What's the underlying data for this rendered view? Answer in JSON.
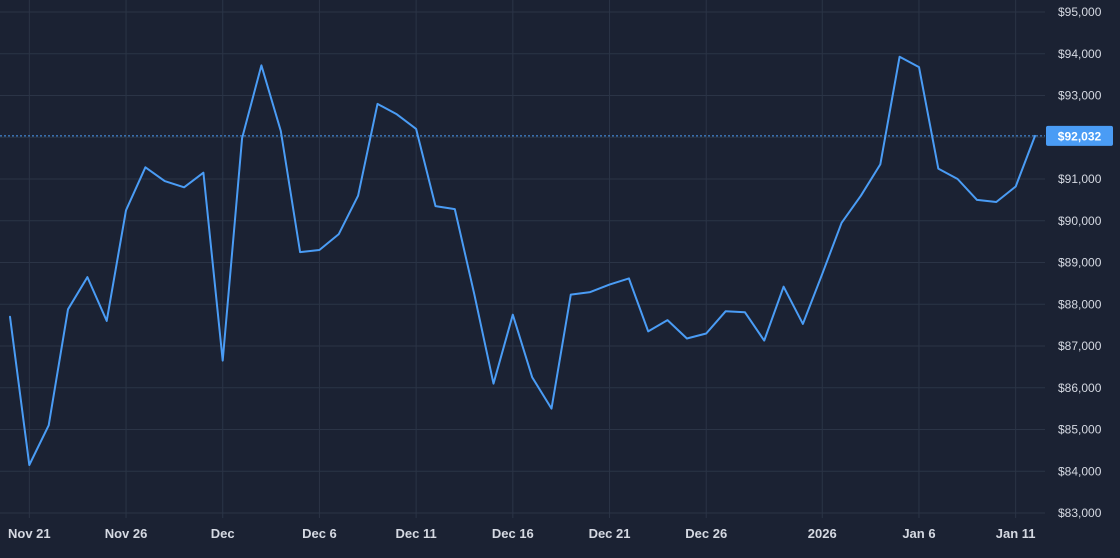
{
  "chart_data": {
    "type": "line",
    "series": [
      {
        "x": [
          "2025-11-20",
          "2025-11-21",
          "2025-11-22",
          "2025-11-23",
          "2025-11-24",
          "2025-11-25",
          "2025-11-26",
          "2025-11-27",
          "2025-11-28",
          "2025-11-29",
          "2025-11-30",
          "2025-12-01",
          "2025-12-02",
          "2025-12-03",
          "2025-12-04",
          "2025-12-05",
          "2025-12-06",
          "2025-12-07",
          "2025-12-08",
          "2025-12-09",
          "2025-12-10",
          "2025-12-11",
          "2025-12-12",
          "2025-12-13",
          "2025-12-14",
          "2025-12-15",
          "2025-12-16",
          "2025-12-17",
          "2025-12-18",
          "2025-12-19",
          "2025-12-20",
          "2025-12-21",
          "2025-12-22",
          "2025-12-23",
          "2025-12-24",
          "2025-12-25",
          "2025-12-26",
          "2025-12-27",
          "2025-12-28",
          "2025-12-29",
          "2025-12-30",
          "2025-12-31",
          "2026-01-01",
          "2026-01-02",
          "2026-01-03",
          "2026-01-04",
          "2026-01-05",
          "2026-01-06",
          "2026-01-07",
          "2026-01-08",
          "2026-01-09",
          "2026-01-10",
          "2026-01-11",
          "2026-01-12"
        ],
        "values": [
          87700,
          84150,
          85100,
          87880,
          88650,
          87600,
          90250,
          91280,
          90950,
          90800,
          91150,
          86650,
          91980,
          93720,
          92150,
          89250,
          89300,
          89680,
          90600,
          92800,
          92550,
          92200,
          90350,
          90280,
          88250,
          86100,
          87750,
          86250,
          85500,
          88230,
          88290,
          88470,
          88620,
          87350,
          87620,
          87180,
          87300,
          87830,
          87810,
          87130,
          88420,
          87530,
          88730,
          89950,
          90600,
          91350,
          93930,
          93680,
          91250,
          91000,
          90500,
          90450,
          90820,
          92032
        ]
      }
    ],
    "xticks": [
      {
        "label": "Nov 21",
        "date": "2025-11-21"
      },
      {
        "label": "Nov 26",
        "date": "2025-11-26"
      },
      {
        "label": "Dec",
        "date": "2025-12-01"
      },
      {
        "label": "Dec 6",
        "date": "2025-12-06"
      },
      {
        "label": "Dec 11",
        "date": "2025-12-11"
      },
      {
        "label": "Dec 16",
        "date": "2025-12-16"
      },
      {
        "label": "Dec 21",
        "date": "2025-12-21"
      },
      {
        "label": "Dec 26",
        "date": "2025-12-26"
      },
      {
        "label": "2026",
        "date": "2026-01-01"
      },
      {
        "label": "Jan 6",
        "date": "2026-01-06"
      },
      {
        "label": "Jan 11",
        "date": "2026-01-11"
      }
    ],
    "yticks": [
      83000,
      84000,
      85000,
      86000,
      87000,
      88000,
      89000,
      90000,
      91000,
      92000,
      93000,
      94000,
      95000
    ],
    "ytick_labels": [
      "$83,000",
      "$84,000",
      "$85,000",
      "$86,000",
      "$87,000",
      "$88,000",
      "$89,000",
      "$90,000",
      "$91,000",
      "$92,000",
      "$93,000",
      "$94,000",
      "$95,000"
    ],
    "ylim": [
      83000,
      95000
    ],
    "y_axis_position": "right",
    "grid": true,
    "current_price": 92032,
    "current_price_label": "$92,032",
    "colors": {
      "background": "#1b2233",
      "grid": "#2b3446",
      "line": "#4a9cf5",
      "price_line": "#4a9cf5",
      "price_label_bg": "#4a9cf5",
      "tick_text": "#d5d9e2"
    }
  }
}
